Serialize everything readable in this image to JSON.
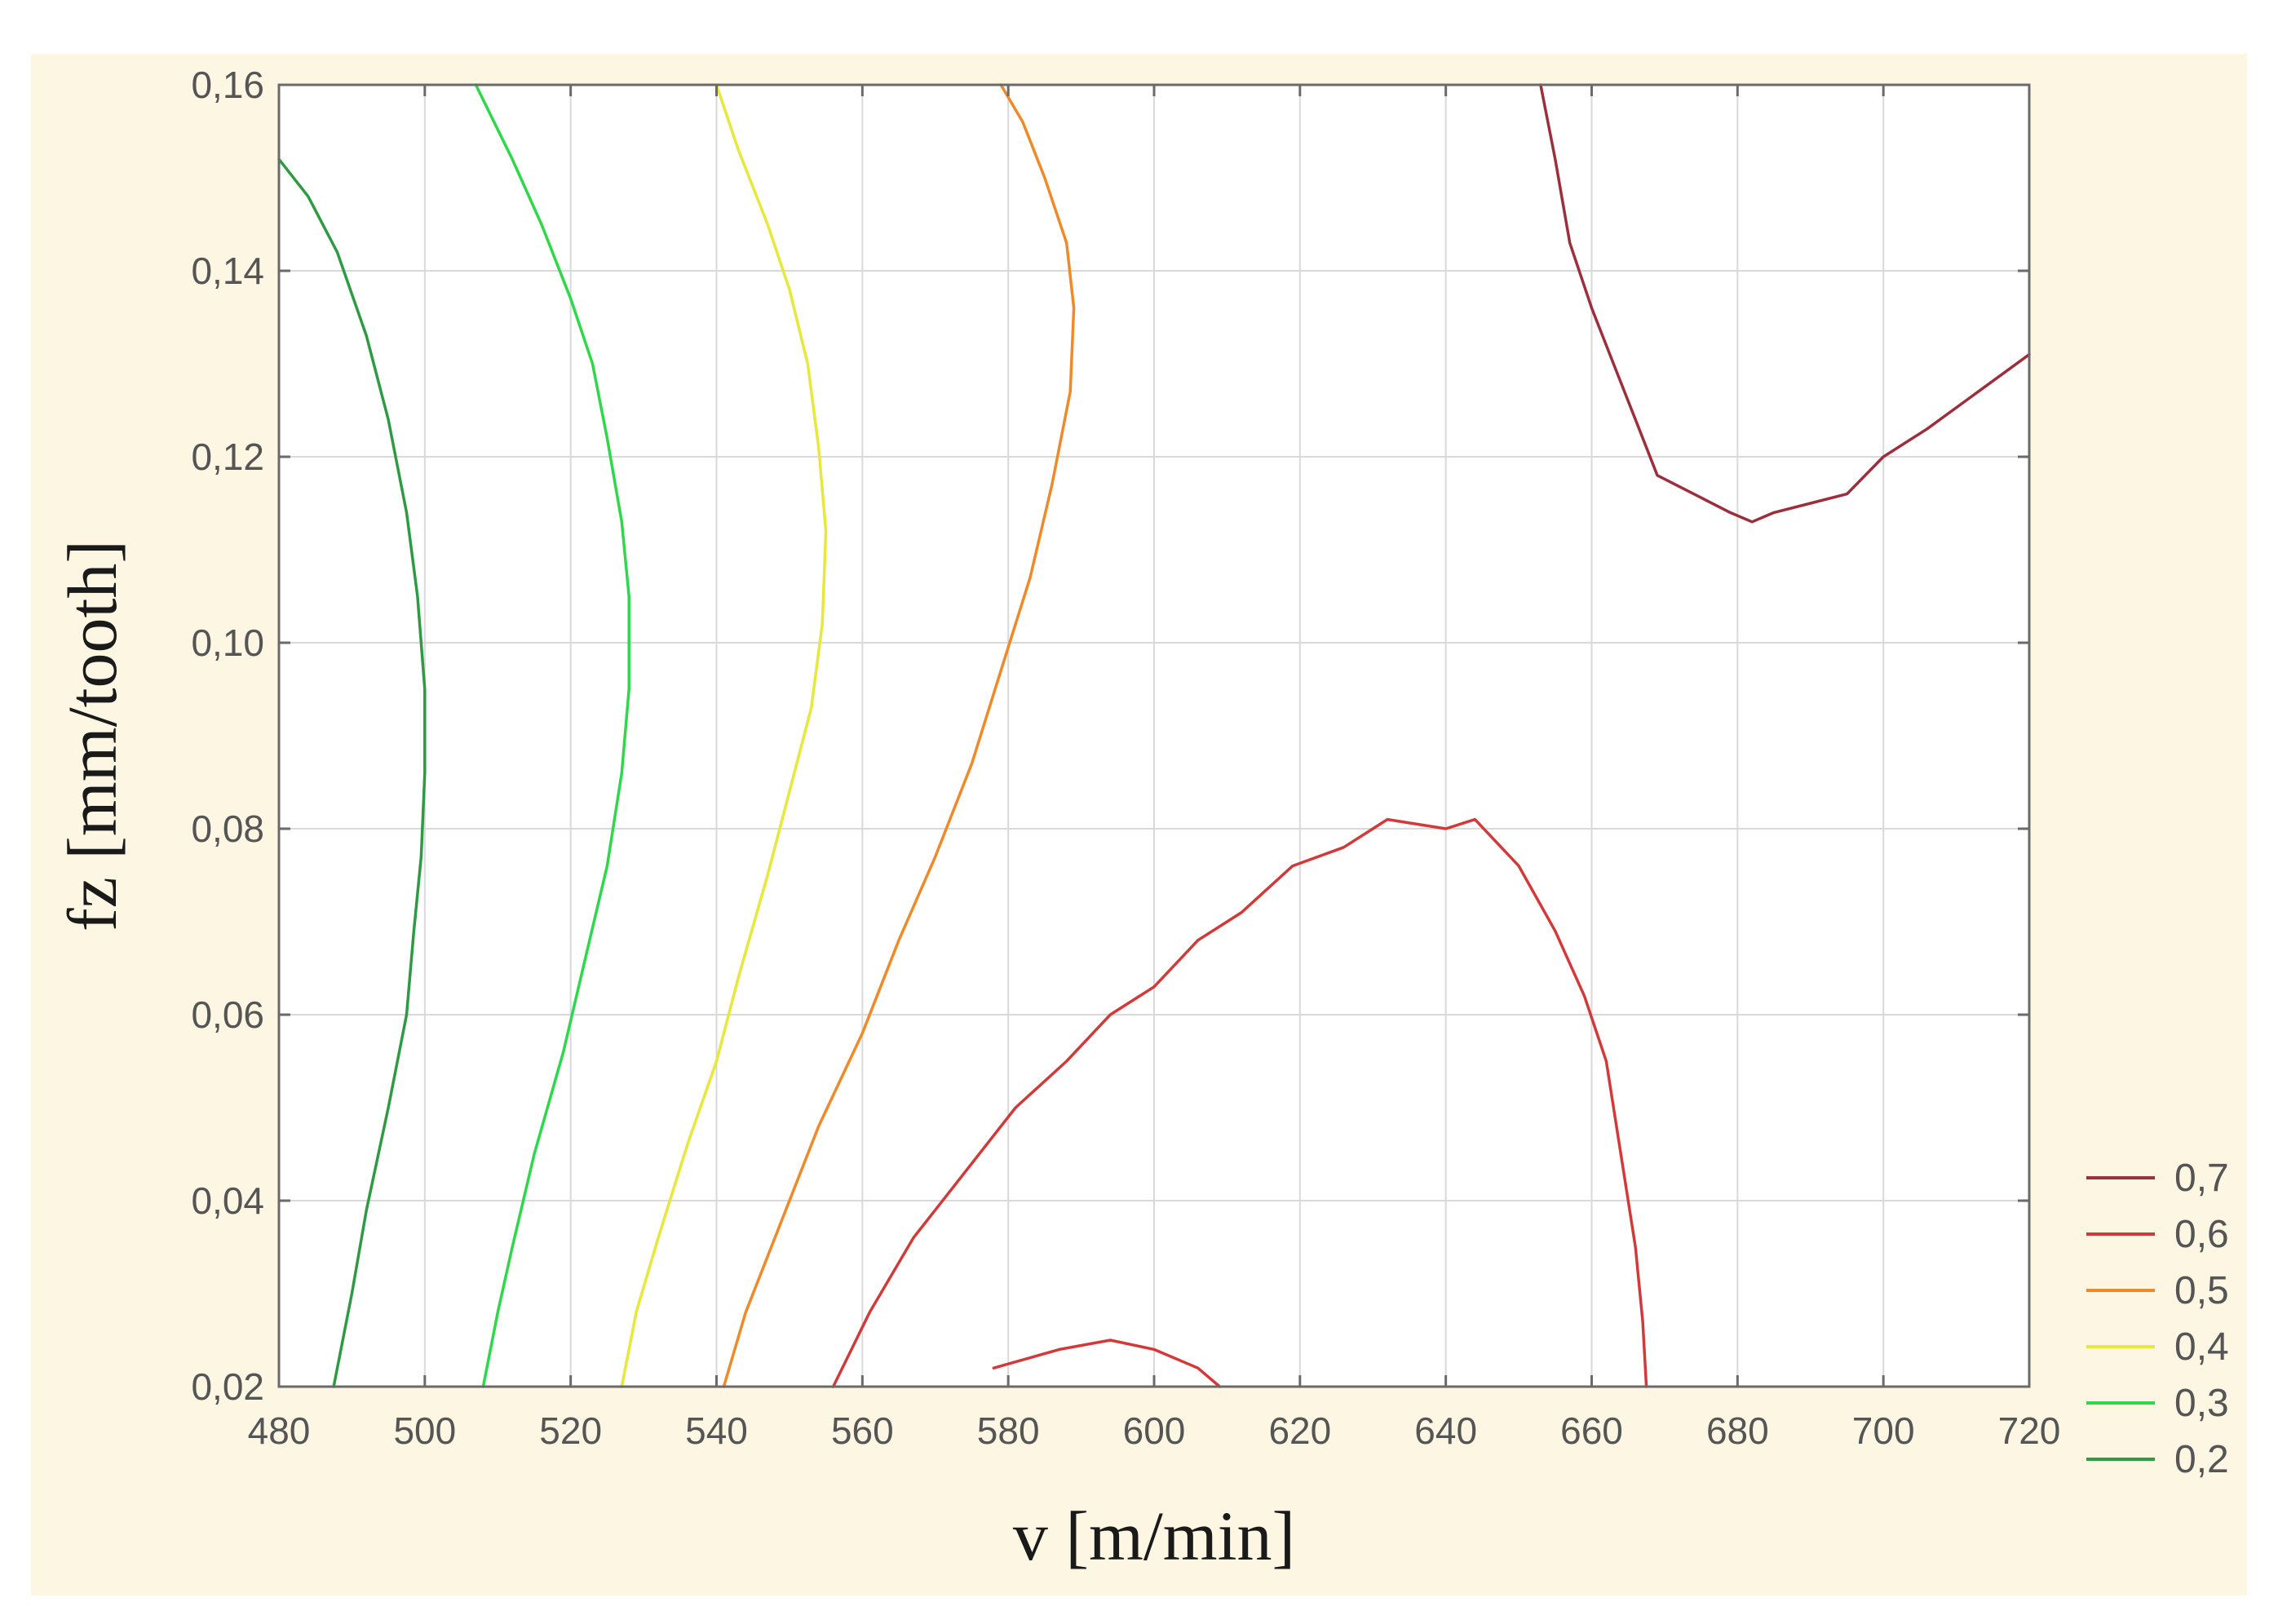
{
  "chart_data": {
    "type": "contour",
    "xlabel": "v [m/min]",
    "ylabel": "fz [mm/tooth]",
    "xlim": [
      480,
      720
    ],
    "ylim": [
      0.02,
      0.16
    ],
    "x_ticks": [
      480,
      500,
      520,
      540,
      560,
      580,
      600,
      620,
      640,
      660,
      680,
      700,
      720
    ],
    "y_ticks": [
      0.02,
      0.04,
      0.06,
      0.08,
      0.1,
      0.12,
      0.14,
      0.16
    ],
    "x_tick_labels": [
      "480",
      "500",
      "520",
      "540",
      "560",
      "580",
      "600",
      "620",
      "640",
      "660",
      "680",
      "700",
      "720"
    ],
    "y_tick_labels": [
      "0,02",
      "0,04",
      "0,06",
      "0,08",
      "0,10",
      "0,12",
      "0,14",
      "0,16"
    ],
    "grid": true,
    "legend_position": "bottom-right, outside plot",
    "background_color": "#fdf6e3",
    "plot_background_color": "#ffffff",
    "legend": [
      {
        "label": "0,7",
        "color": "#9c2f3c"
      },
      {
        "label": "0,6",
        "color": "#d23a3a"
      },
      {
        "label": "0,5",
        "color": "#ef8a2a"
      },
      {
        "label": "0,4",
        "color": "#e8e83c"
      },
      {
        "label": "0,3",
        "color": "#2ed84a"
      },
      {
        "label": "0,2",
        "color": "#2e9a44"
      }
    ],
    "series": [
      {
        "level": "0,2",
        "color": "#2e9a44",
        "segments": [
          [
            [
              480,
              0.152
            ],
            [
              484,
              0.148
            ],
            [
              488,
              0.142
            ],
            [
              492,
              0.133
            ],
            [
              495,
              0.124
            ],
            [
              497.5,
              0.114
            ],
            [
              499,
              0.105
            ],
            [
              500,
              0.095
            ],
            [
              500,
              0.086
            ],
            [
              499.5,
              0.077
            ],
            [
              498.5,
              0.069
            ],
            [
              497.5,
              0.06
            ],
            [
              495,
              0.05
            ],
            [
              492,
              0.039
            ],
            [
              490,
              0.03
            ],
            [
              487.5,
              0.02
            ]
          ]
        ]
      },
      {
        "level": "0,3",
        "color": "#2ed84a",
        "segments": [
          [
            [
              507,
              0.16
            ],
            [
              512,
              0.152
            ],
            [
              516,
              0.145
            ],
            [
              520,
              0.137
            ],
            [
              523,
              0.13
            ],
            [
              525,
              0.122
            ],
            [
              527,
              0.113
            ],
            [
              528,
              0.105
            ],
            [
              528,
              0.095
            ],
            [
              527,
              0.086
            ],
            [
              525,
              0.076
            ],
            [
              522,
              0.066
            ],
            [
              519,
              0.056
            ],
            [
              515,
              0.045
            ],
            [
              512,
              0.035
            ],
            [
              510,
              0.028
            ],
            [
              508,
              0.02
            ]
          ]
        ]
      },
      {
        "level": "0,4",
        "color": "#e8e83c",
        "segments": [
          [
            [
              540,
              0.16
            ],
            [
              543,
              0.153
            ],
            [
              547,
              0.145
            ],
            [
              550,
              0.138
            ],
            [
              552.5,
              0.13
            ],
            [
              554,
              0.121
            ],
            [
              555,
              0.112
            ],
            [
              554.5,
              0.102
            ],
            [
              553,
              0.093
            ],
            [
              550,
              0.084
            ],
            [
              547,
              0.075
            ],
            [
              543,
              0.064
            ],
            [
              540,
              0.055
            ],
            [
              536,
              0.046
            ],
            [
              532,
              0.036
            ],
            [
              529,
              0.028
            ],
            [
              527,
              0.02
            ]
          ]
        ]
      },
      {
        "level": "0,5",
        "color": "#ef8a2a",
        "segments": [
          [
            [
              579,
              0.16
            ],
            [
              582,
              0.156
            ],
            [
              585,
              0.15
            ],
            [
              588,
              0.143
            ],
            [
              589,
              0.136
            ],
            [
              588.5,
              0.127
            ],
            [
              586,
              0.117
            ],
            [
              583,
              0.107
            ],
            [
              579,
              0.097
            ],
            [
              575,
              0.087
            ],
            [
              570,
              0.077
            ],
            [
              565,
              0.068
            ],
            [
              560,
              0.058
            ],
            [
              554,
              0.048
            ],
            [
              549,
              0.038
            ],
            [
              544,
              0.028
            ],
            [
              541,
              0.02
            ]
          ]
        ]
      },
      {
        "level": "0,6",
        "color": "#d23a3a",
        "segments": [
          [
            [
              556,
              0.02
            ],
            [
              561,
              0.028
            ],
            [
              567,
              0.036
            ],
            [
              574,
              0.043
            ],
            [
              581,
              0.05
            ],
            [
              588,
              0.055
            ],
            [
              594,
              0.06
            ],
            [
              600,
              0.063
            ],
            [
              606,
              0.068
            ],
            [
              612,
              0.071
            ],
            [
              619,
              0.076
            ],
            [
              626,
              0.078
            ],
            [
              632,
              0.081
            ],
            [
              640,
              0.08
            ],
            [
              644,
              0.081
            ],
            [
              650,
              0.076
            ],
            [
              655,
              0.069
            ],
            [
              659,
              0.062
            ],
            [
              662,
              0.055
            ],
            [
              664,
              0.045
            ],
            [
              666,
              0.035
            ],
            [
              667,
              0.027
            ],
            [
              667.5,
              0.02
            ]
          ],
          [
            [
              578,
              0.022
            ],
            [
              587,
              0.024
            ],
            [
              594,
              0.025
            ],
            [
              600,
              0.024
            ],
            [
              606,
              0.022
            ],
            [
              609,
              0.02
            ]
          ]
        ]
      },
      {
        "level": "0,7",
        "color": "#9c2f3c",
        "segments": [
          [
            [
              653,
              0.16
            ],
            [
              655,
              0.152
            ],
            [
              657,
              0.143
            ],
            [
              660,
              0.136
            ],
            [
              663,
              0.13
            ],
            [
              666,
              0.124
            ],
            [
              669,
              0.118
            ],
            [
              674,
              0.116
            ],
            [
              679,
              0.114
            ],
            [
              682,
              0.113
            ],
            [
              685,
              0.114
            ],
            [
              690,
              0.115
            ],
            [
              695,
              0.116
            ],
            [
              700,
              0.12
            ],
            [
              706,
              0.123
            ],
            [
              713,
              0.127
            ],
            [
              720,
              0.131
            ]
          ]
        ]
      }
    ]
  }
}
